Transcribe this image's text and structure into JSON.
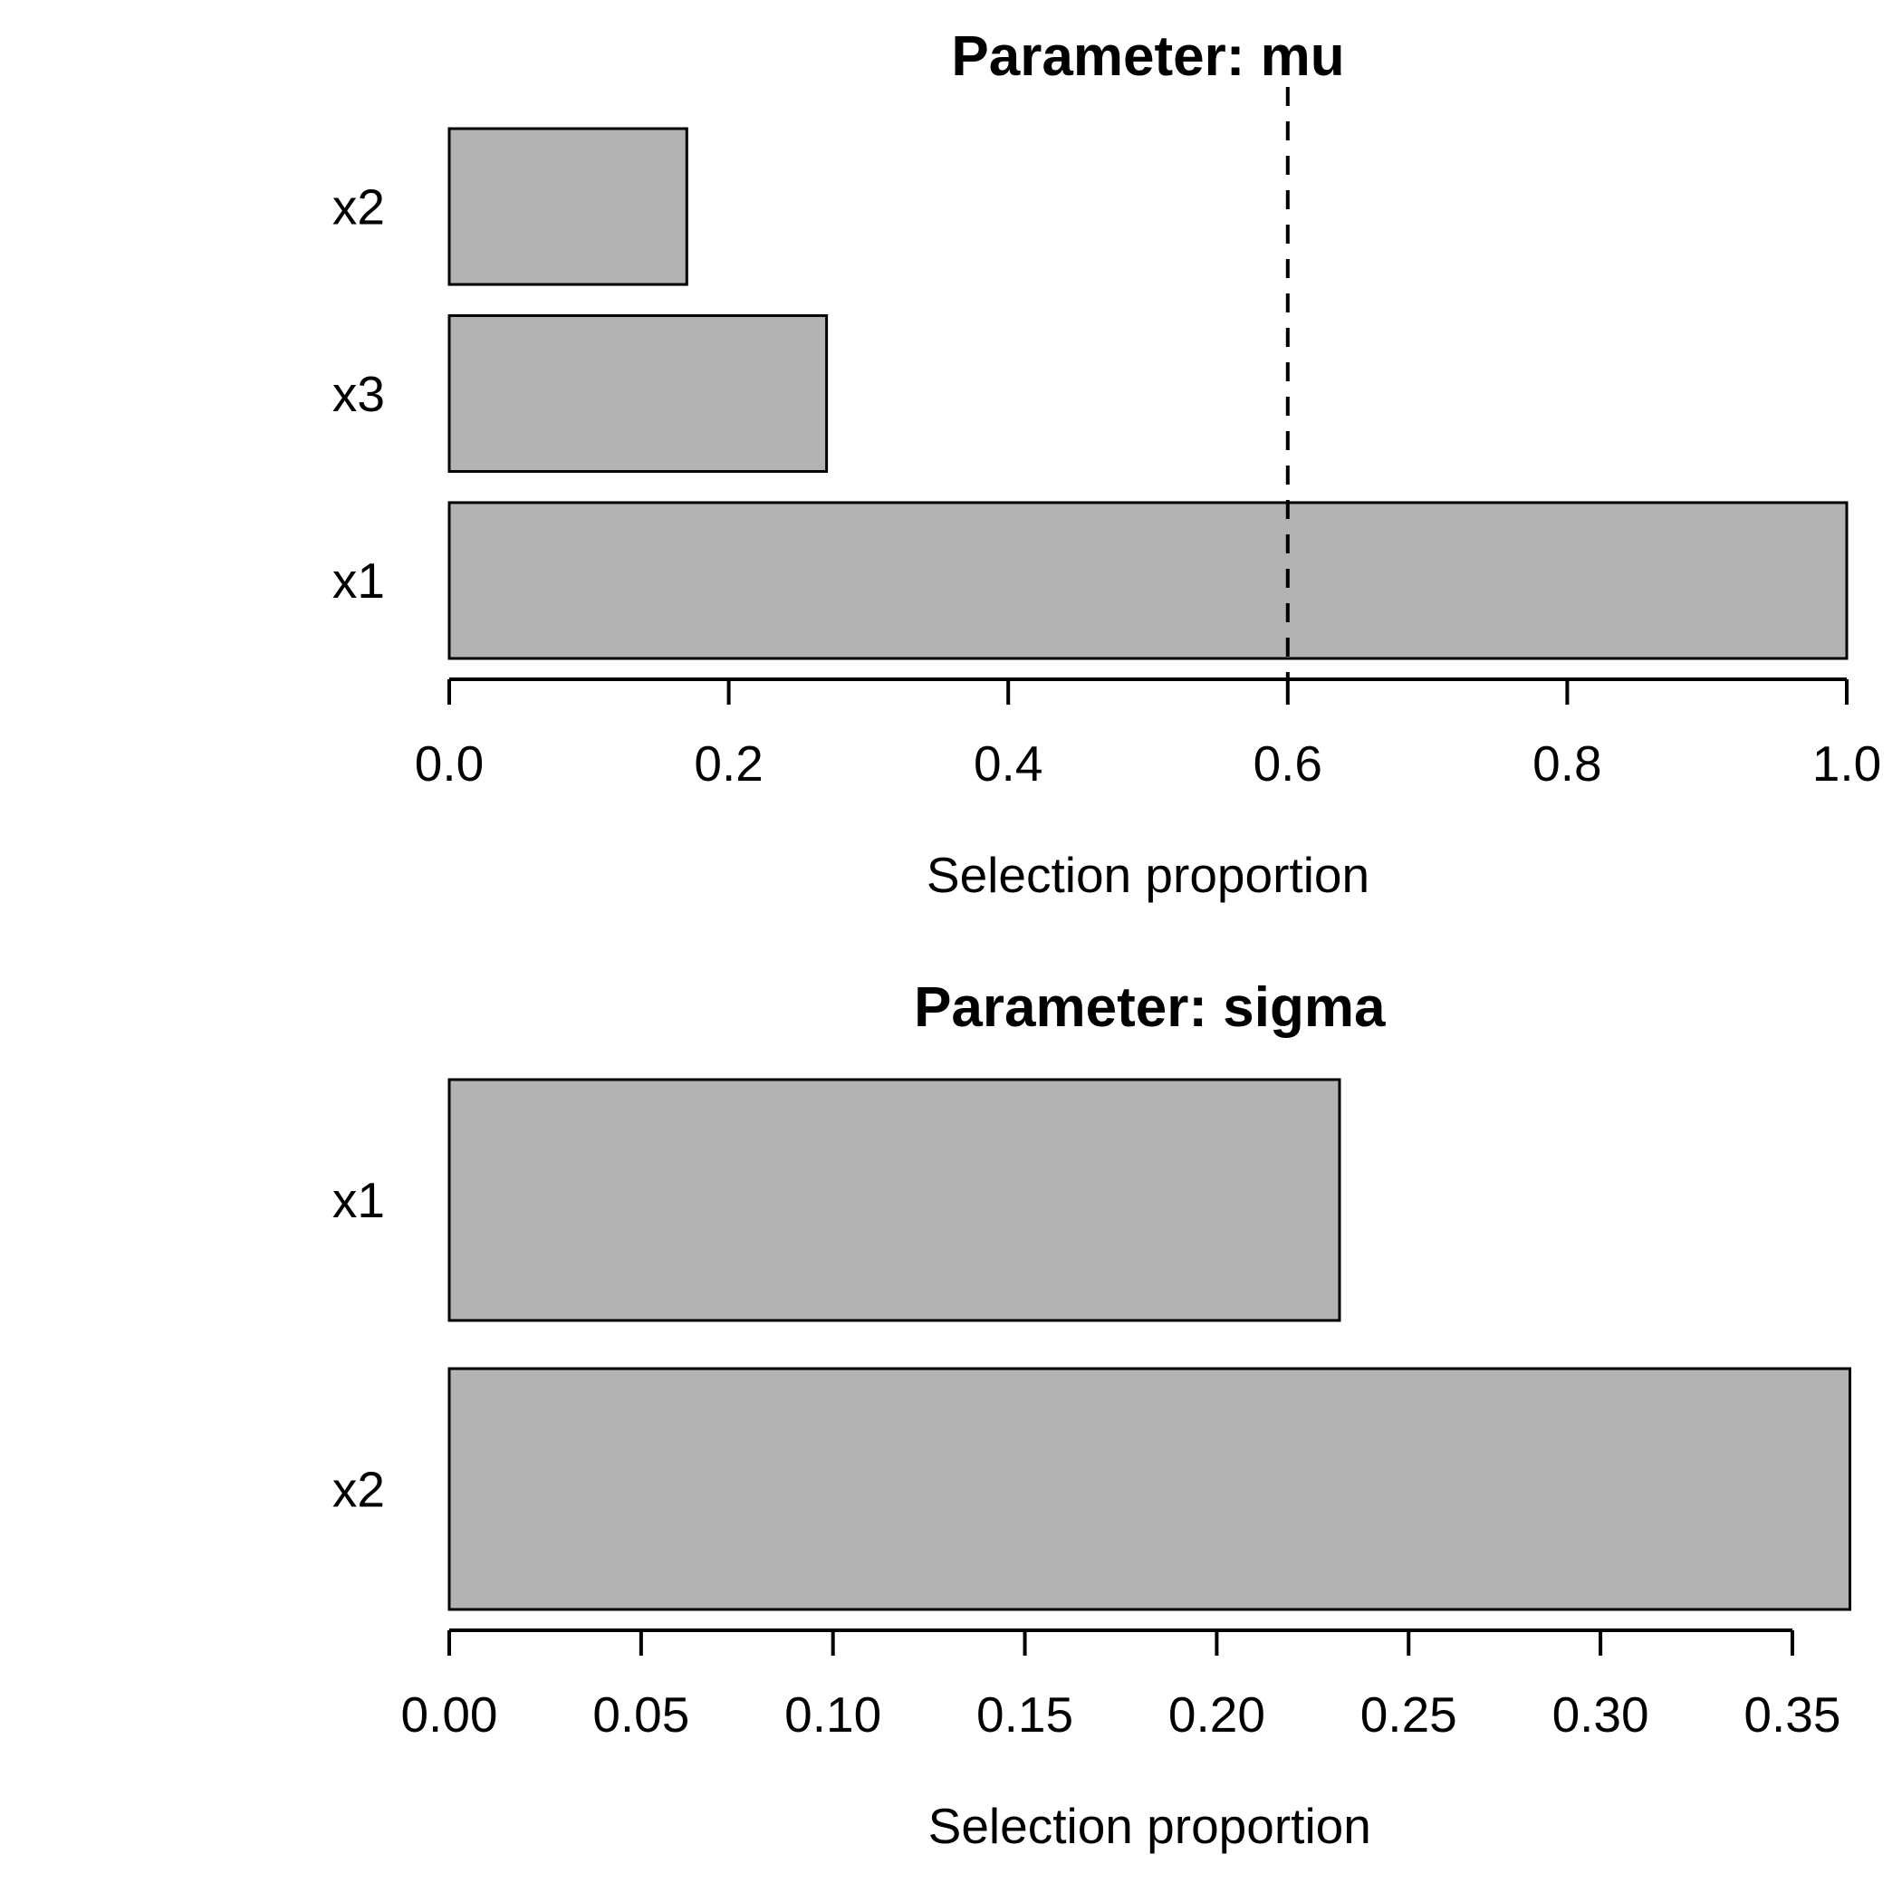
{
  "chart_data": [
    {
      "type": "bar",
      "orientation": "horizontal",
      "title": "Parameter: mu",
      "xlabel": "Selection proportion",
      "categories": [
        "x2",
        "x3",
        "x1"
      ],
      "values": [
        0.17,
        0.27,
        1.0
      ],
      "xlim": [
        0,
        1.0
      ],
      "xticks": [
        {
          "value": 0.0,
          "label": "0.0"
        },
        {
          "value": 0.2,
          "label": "0.2"
        },
        {
          "value": 0.4,
          "label": "0.4"
        },
        {
          "value": 0.6,
          "label": "0.6"
        },
        {
          "value": 0.8,
          "label": "0.8"
        },
        {
          "value": 1.0,
          "label": "1.0"
        }
      ],
      "reference_line": 0.6,
      "reference_line_style": "dashed",
      "bar_fill": "#b3b3b3",
      "bar_border": "#000000",
      "grid": false,
      "legend": null
    },
    {
      "type": "bar",
      "orientation": "horizontal",
      "title": "Parameter: sigma",
      "xlabel": "Selection proportion",
      "categories": [
        "x1",
        "x2"
      ],
      "values": [
        0.232,
        0.365
      ],
      "xlim": [
        0,
        0.35
      ],
      "xticks": [
        {
          "value": 0.0,
          "label": "0.00"
        },
        {
          "value": 0.05,
          "label": "0.05"
        },
        {
          "value": 0.1,
          "label": "0.10"
        },
        {
          "value": 0.15,
          "label": "0.15"
        },
        {
          "value": 0.2,
          "label": "0.20"
        },
        {
          "value": 0.25,
          "label": "0.25"
        },
        {
          "value": 0.3,
          "label": "0.30"
        },
        {
          "value": 0.35,
          "label": "0.35"
        }
      ],
      "reference_line": null,
      "reference_line_style": null,
      "bar_fill": "#b3b3b3",
      "bar_border": "#000000",
      "grid": false,
      "legend": null
    }
  ]
}
